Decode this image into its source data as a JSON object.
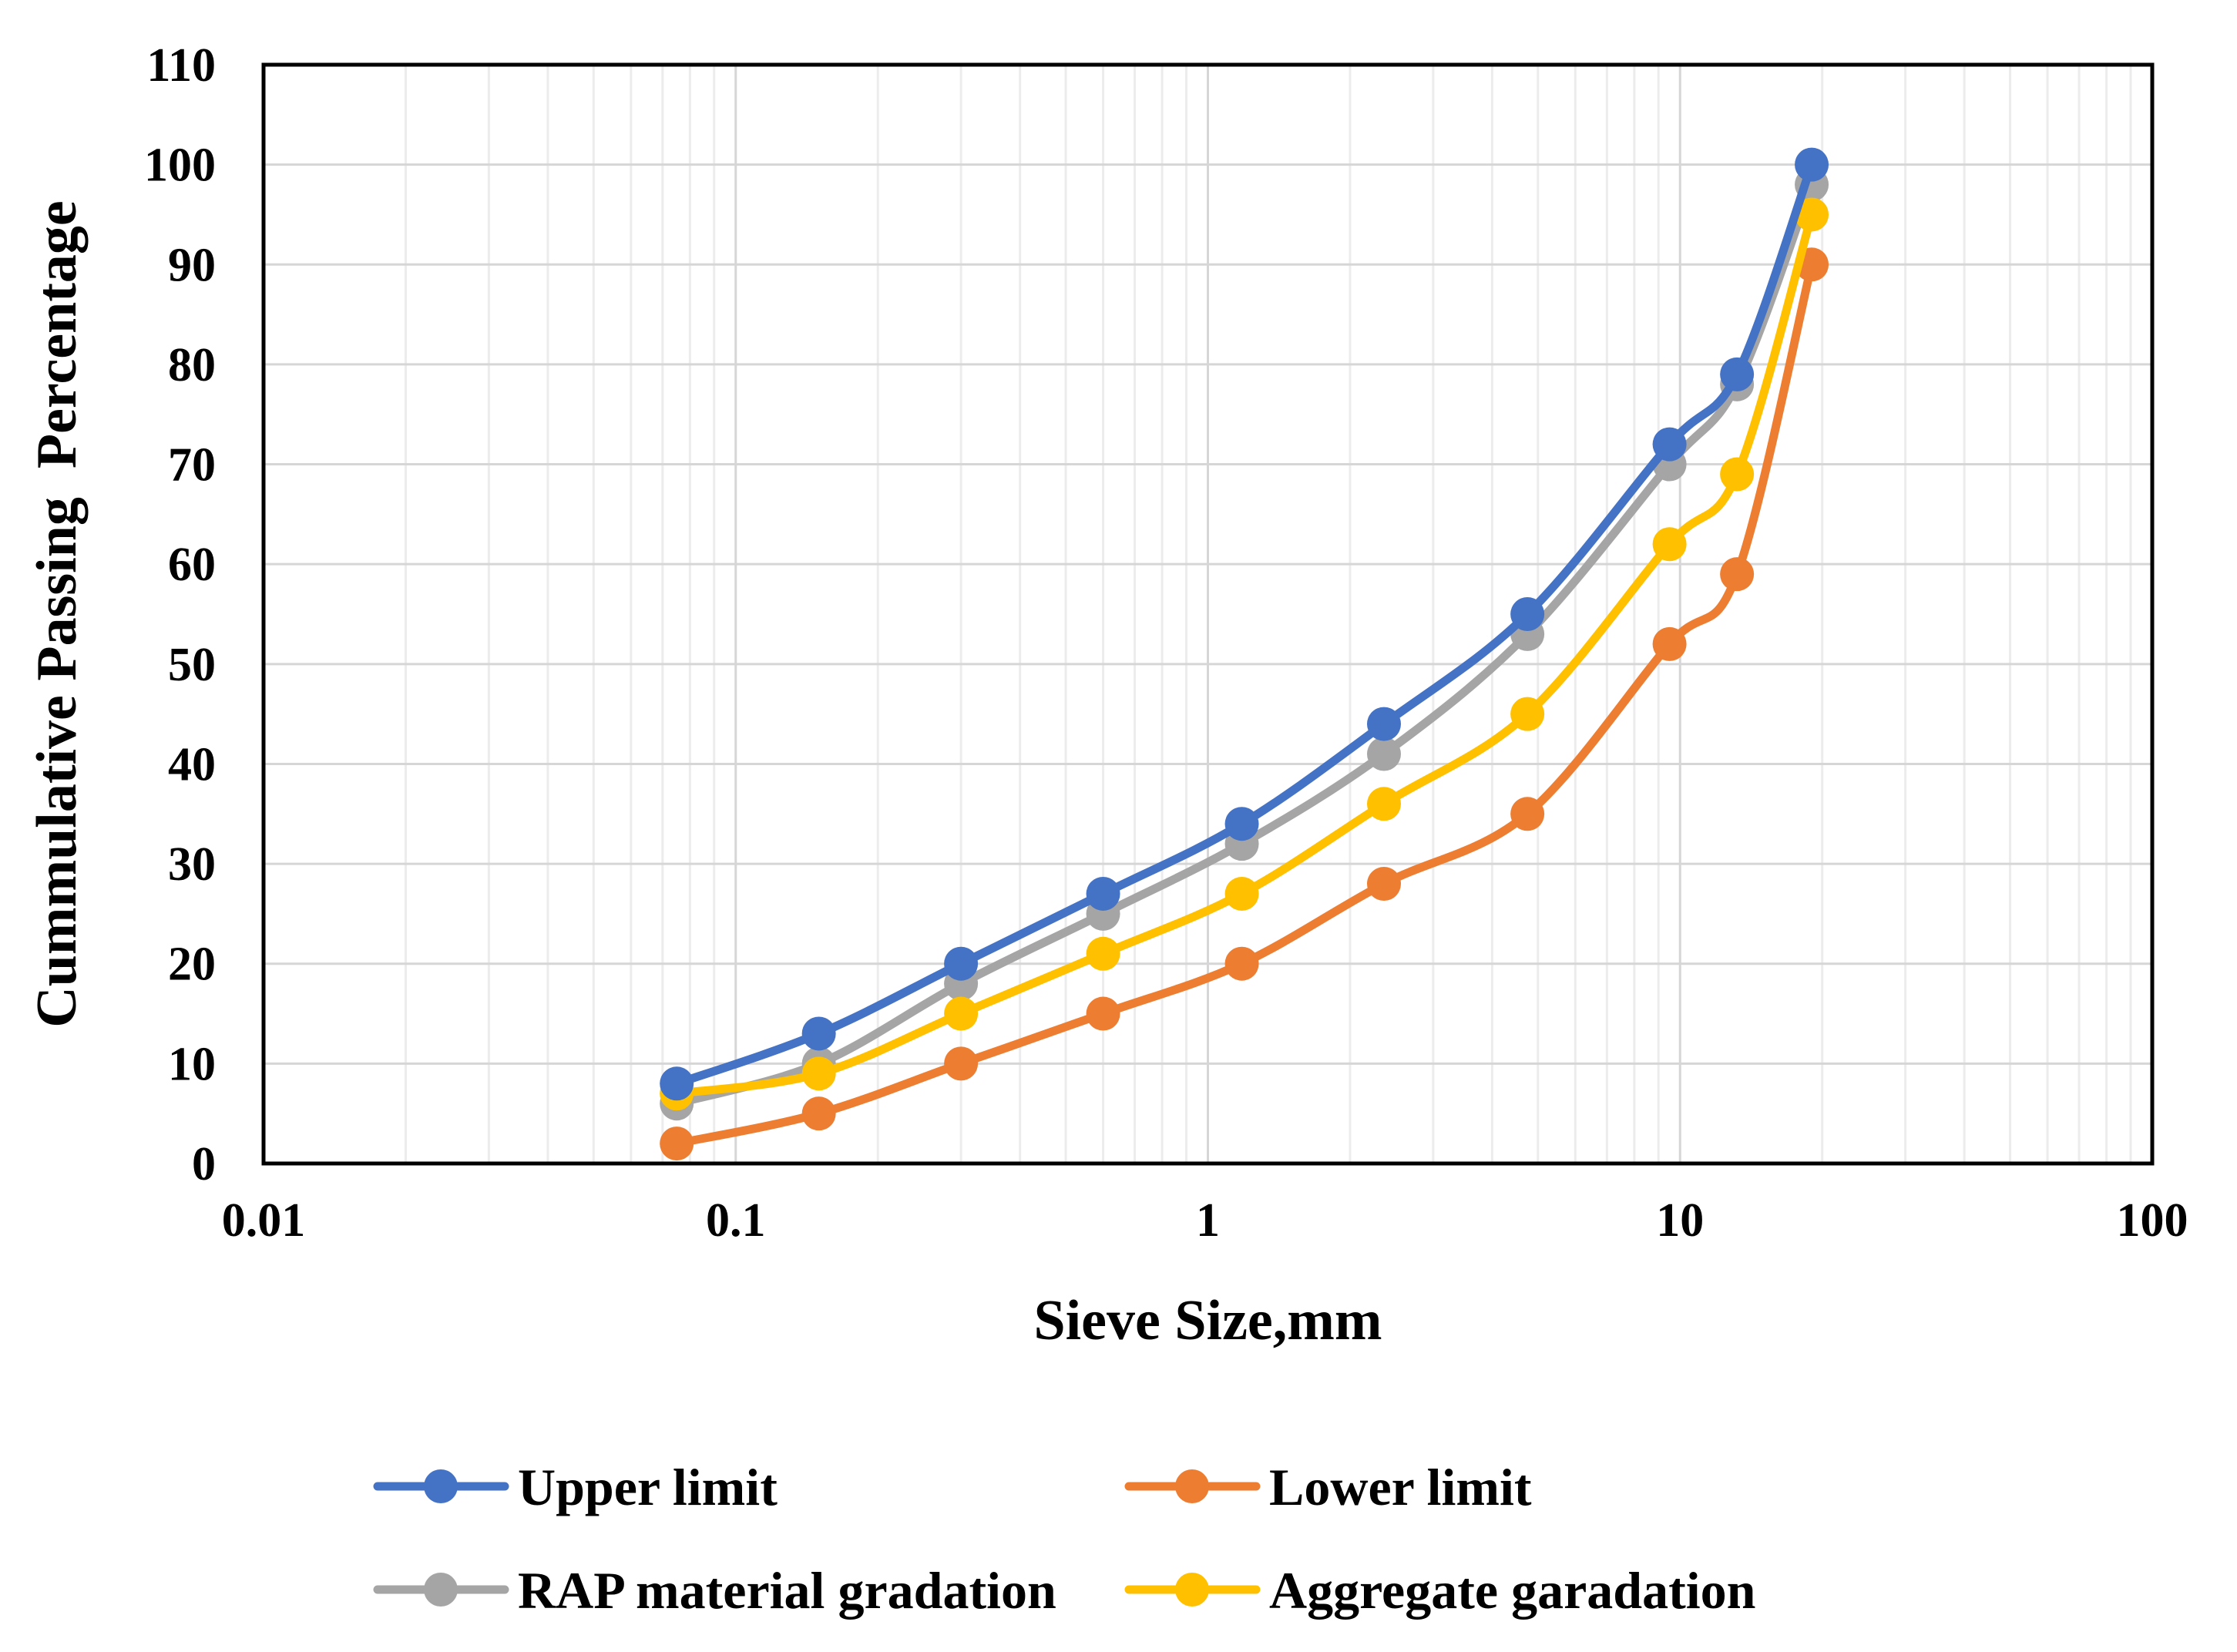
{
  "chart_data": {
    "type": "line",
    "title": "",
    "xlabel": "Sieve Size,mm",
    "ylabel": "Cummulative Passing  Percentage",
    "x_scale": "log",
    "xlim": [
      0.01,
      100
    ],
    "ylim": [
      0,
      110
    ],
    "x_ticks": [
      0.01,
      0.1,
      1,
      10,
      100
    ],
    "x_tick_labels": [
      "0.01",
      "0.1",
      "1",
      "10",
      "100"
    ],
    "y_ticks": [
      0,
      10,
      20,
      30,
      40,
      50,
      60,
      70,
      80,
      90,
      100,
      110
    ],
    "y_tick_labels": [
      "0",
      "10",
      "20",
      "30",
      "40",
      "50",
      "60",
      "70",
      "80",
      "90",
      "100",
      "110"
    ],
    "grid": true,
    "legend": "bottom",
    "x": [
      0.075,
      0.15,
      0.3,
      0.6,
      1.18,
      2.36,
      4.75,
      9.5,
      13.2,
      19
    ],
    "series": [
      {
        "name": "Upper limit",
        "color": "#4472C4",
        "values": [
          8,
          13,
          20,
          27,
          34,
          44,
          55,
          72,
          79,
          100
        ]
      },
      {
        "name": "Lower limit",
        "color": "#ED7D31",
        "values": [
          2,
          5,
          10,
          15,
          20,
          28,
          35,
          52,
          59,
          90
        ]
      },
      {
        "name": "RAP material gradation",
        "color": "#A5A5A5",
        "values": [
          6,
          10,
          18,
          25,
          32,
          41,
          53,
          70,
          78,
          98
        ]
      },
      {
        "name": "Aggregate garadation",
        "color": "#FFC000",
        "values": [
          7,
          9,
          15,
          21,
          27,
          36,
          45,
          62,
          69,
          95
        ]
      }
    ],
    "draw_order": [
      2,
      1,
      3,
      0
    ]
  }
}
